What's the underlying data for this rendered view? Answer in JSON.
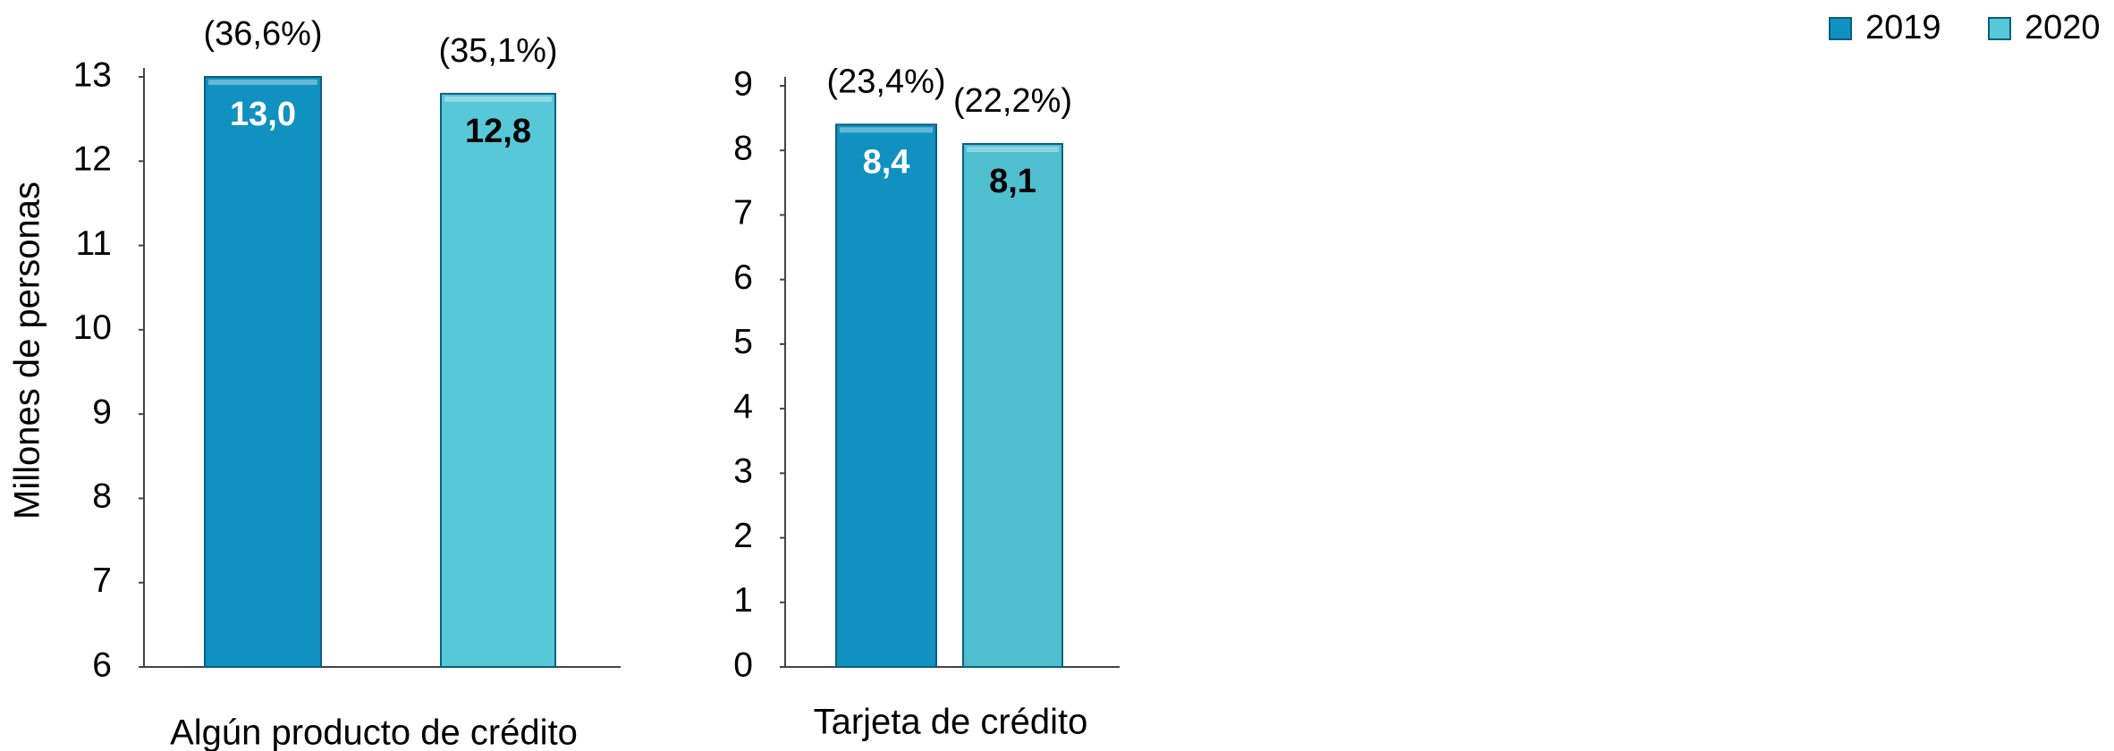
{
  "chart_data": [
    {
      "type": "bar",
      "ylabel": "Millones de personas",
      "categories": [
        "Algún producto de crédito"
      ],
      "series": [
        {
          "name": "2019",
          "color": "#1191bf",
          "values": [
            13.0
          ],
          "value_labels": [
            "13,0"
          ]
        },
        {
          "name": "2020",
          "color": "#56c8d8",
          "values": [
            12.8
          ],
          "value_labels": [
            "12,8"
          ]
        }
      ],
      "annotations": [
        "(36,6%)",
        "(35,1%)"
      ],
      "ylim": [
        6,
        13
      ],
      "yticks": [
        6,
        7,
        8,
        9,
        10,
        11,
        12,
        13
      ]
    },
    {
      "type": "bar",
      "categories": [
        "Tarjeta de crédito"
      ],
      "series": [
        {
          "name": "2019",
          "color": "#1191bf",
          "values": [
            8.4
          ],
          "value_labels": [
            "8,4"
          ]
        },
        {
          "name": "2020",
          "color": "#4fbfd0",
          "values": [
            8.1
          ],
          "value_labels": [
            "8,1"
          ]
        }
      ],
      "annotations": [
        "(23,4%)",
        "(22,2%)"
      ],
      "ylim": [
        0,
        9
      ],
      "yticks": [
        0,
        1,
        2,
        3,
        4,
        5,
        6,
        7,
        8,
        9
      ]
    }
  ]
}
